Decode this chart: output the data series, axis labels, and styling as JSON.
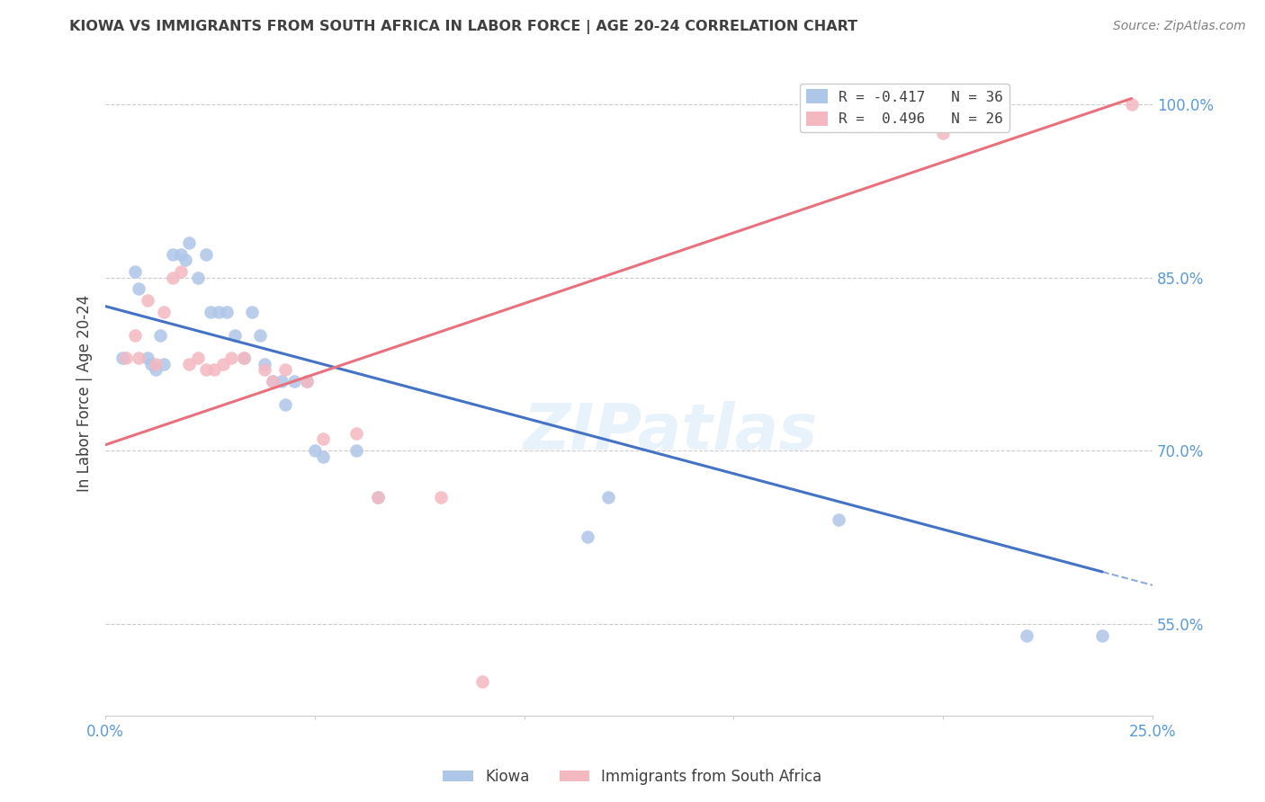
{
  "title": "KIOWA VS IMMIGRANTS FROM SOUTH AFRICA IN LABOR FORCE | AGE 20-24 CORRELATION CHART",
  "source": "Source: ZipAtlas.com",
  "ylabel": "In Labor Force | Age 20-24",
  "xlim": [
    0.0,
    0.25
  ],
  "ylim": [
    0.47,
    1.03
  ],
  "yticks": [
    0.55,
    0.7,
    0.85,
    1.0
  ],
  "ytick_labels": [
    "55.0%",
    "70.0%",
    "85.0%",
    "100.0%"
  ],
  "xticks": [
    0.0,
    0.05,
    0.1,
    0.15,
    0.2,
    0.25
  ],
  "xtick_labels": [
    "0.0%",
    "",
    "",
    "",
    "",
    "25.0%"
  ],
  "legend_line1": "R = -0.417   N = 36",
  "legend_line2": "R =  0.496   N = 26",
  "watermark": "ZIPatlas",
  "kiowa_color": "#aec6e8",
  "immigrant_color": "#f4b8c1",
  "kiowa_line_color": "#4472c4",
  "immigrant_line_color": "#e8717d",
  "background_color": "#ffffff",
  "grid_color": "#cccccc",
  "tick_label_color": "#5b9bd5",
  "title_color": "#404040",
  "ylabel_color": "#404040",
  "source_color": "#808080",
  "kiowa_line_x0": 0.0,
  "kiowa_line_y0": 0.825,
  "kiowa_line_x1": 0.238,
  "kiowa_line_y1": 0.595,
  "kiowa_line_solid_end": 0.238,
  "kiowa_line_dash_end": 0.25,
  "immigrant_line_x0": 0.0,
  "immigrant_line_y0": 0.705,
  "immigrant_line_x1": 0.245,
  "immigrant_line_y1": 1.005,
  "kiowa_scatter_x": [
    0.004,
    0.007,
    0.008,
    0.01,
    0.011,
    0.012,
    0.013,
    0.014,
    0.016,
    0.018,
    0.019,
    0.02,
    0.022,
    0.024,
    0.025,
    0.027,
    0.029,
    0.031,
    0.033,
    0.035,
    0.037,
    0.038,
    0.04,
    0.042,
    0.043,
    0.045,
    0.048,
    0.05,
    0.052,
    0.06,
    0.065,
    0.115,
    0.12,
    0.175,
    0.22,
    0.238
  ],
  "kiowa_scatter_y": [
    0.78,
    0.855,
    0.84,
    0.78,
    0.775,
    0.77,
    0.8,
    0.775,
    0.87,
    0.87,
    0.865,
    0.88,
    0.85,
    0.87,
    0.82,
    0.82,
    0.82,
    0.8,
    0.78,
    0.82,
    0.8,
    0.775,
    0.76,
    0.76,
    0.74,
    0.76,
    0.76,
    0.7,
    0.695,
    0.7,
    0.66,
    0.625,
    0.66,
    0.64,
    0.54,
    0.54
  ],
  "immigrant_scatter_x": [
    0.005,
    0.007,
    0.008,
    0.01,
    0.012,
    0.014,
    0.016,
    0.018,
    0.02,
    0.022,
    0.024,
    0.026,
    0.028,
    0.03,
    0.033,
    0.038,
    0.04,
    0.043,
    0.048,
    0.052,
    0.06,
    0.065,
    0.08,
    0.09,
    0.2,
    0.245
  ],
  "immigrant_scatter_y": [
    0.78,
    0.8,
    0.78,
    0.83,
    0.775,
    0.82,
    0.85,
    0.855,
    0.775,
    0.78,
    0.77,
    0.77,
    0.775,
    0.78,
    0.78,
    0.77,
    0.76,
    0.77,
    0.76,
    0.71,
    0.715,
    0.66,
    0.66,
    0.5,
    0.975,
    1.0
  ]
}
